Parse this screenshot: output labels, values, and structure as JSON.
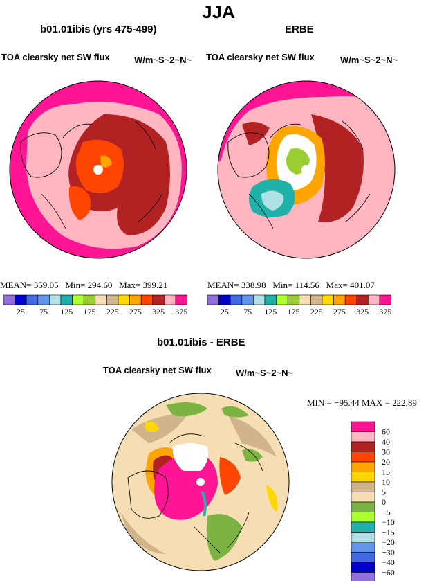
{
  "figure": {
    "title": "JJA",
    "left_panel": {
      "case_title": "b01.01ibis (yrs 475-499)",
      "variable": "TOA clearsky net SW flux",
      "units": "W/m~S~2~N~",
      "stats": {
        "mean_label": "MEAN=",
        "mean": "359.05",
        "min_label": "Min=",
        "min": "294.60",
        "max_label": "Max=",
        "max": "399.21"
      }
    },
    "right_panel": {
      "case_title": "ERBE",
      "variable": "TOA clearsky net SW flux",
      "units": "W/m~S~2~N~",
      "stats": {
        "mean_label": "MEAN=",
        "mean": "338.98",
        "min_label": "Min=",
        "min": "114.56",
        "max_label": "Max=",
        "max": "401.07"
      }
    },
    "diff_panel": {
      "case_title": "b01.01ibis - ERBE",
      "variable": "TOA clearsky net SW flux",
      "units": "W/m~S~2~N~",
      "stats_text": "MIN = −95.44  MAX = 222.89"
    }
  },
  "colorbars": {
    "abs": {
      "colors": [
        "#9370db",
        "#0000cd",
        "#4169e1",
        "#6495ed",
        "#b0e0e6",
        "#20b2aa",
        "#adff2f",
        "#9acd32",
        "#f5deb3",
        "#d2b48c",
        "#ffd700",
        "#ffa500",
        "#ff4500",
        "#b22222",
        "#ffb6c1",
        "#ff1493"
      ],
      "labels": [
        "25",
        "75",
        "125",
        "175",
        "225",
        "275",
        "325",
        "375"
      ]
    },
    "diff": {
      "colors": [
        "#ff1493",
        "#ffb6c1",
        "#b22222",
        "#ff4500",
        "#ffa500",
        "#ffd700",
        "#d2b48c",
        "#f5deb3",
        "#7cb342",
        "#adff2f",
        "#20b2aa",
        "#b0e0e6",
        "#6495ed",
        "#4169e1",
        "#0000cd",
        "#9370db"
      ],
      "labels": [
        "60",
        "40",
        "30",
        "20",
        "15",
        "10",
        "5",
        "0",
        "−5",
        "−10",
        "−15",
        "−20",
        "−30",
        "−40",
        "−60"
      ]
    }
  }
}
